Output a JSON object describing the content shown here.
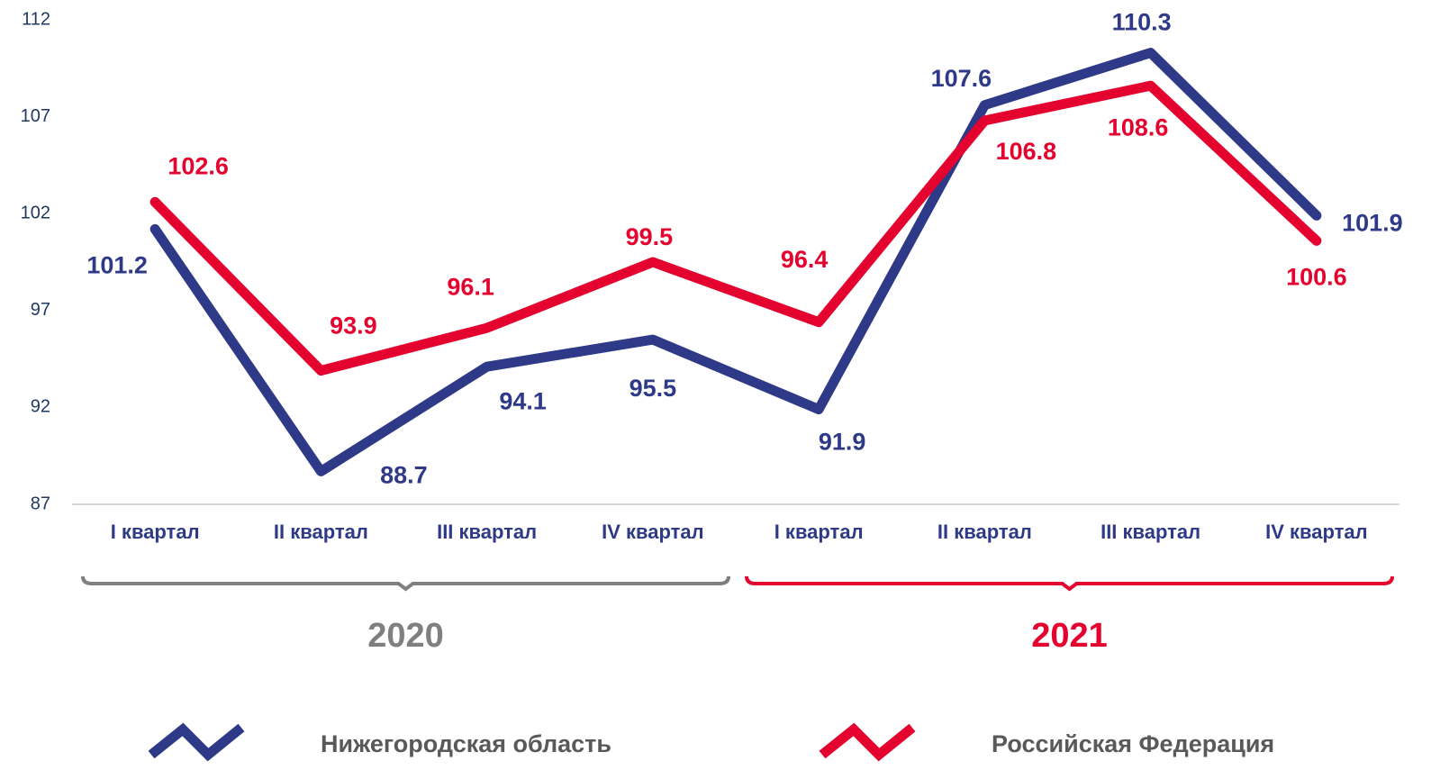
{
  "chart_data": {
    "type": "line",
    "categories": [
      "I квартал",
      "II квартал",
      "III квартал",
      "IV квартал",
      "I квартал",
      "II квартал",
      "III квартал",
      "IV квартал"
    ],
    "groups": [
      {
        "label": "2020",
        "color": "#7f7f7f"
      },
      {
        "label": "2021",
        "color": "#e4032e"
      }
    ],
    "series": [
      {
        "name": "Нижегородская область",
        "color": "#2e3a87",
        "values": [
          101.2,
          88.7,
          94.1,
          95.5,
          91.9,
          107.6,
          110.3,
          101.9
        ]
      },
      {
        "name": "Российская Федерация",
        "color": "#e4032e",
        "values": [
          102.6,
          93.9,
          96.1,
          99.5,
          96.4,
          106.8,
          108.6,
          100.6
        ]
      }
    ],
    "ylim": [
      87,
      112
    ],
    "yticks": [
      87,
      92,
      97,
      102,
      107,
      112
    ],
    "grid": false
  }
}
